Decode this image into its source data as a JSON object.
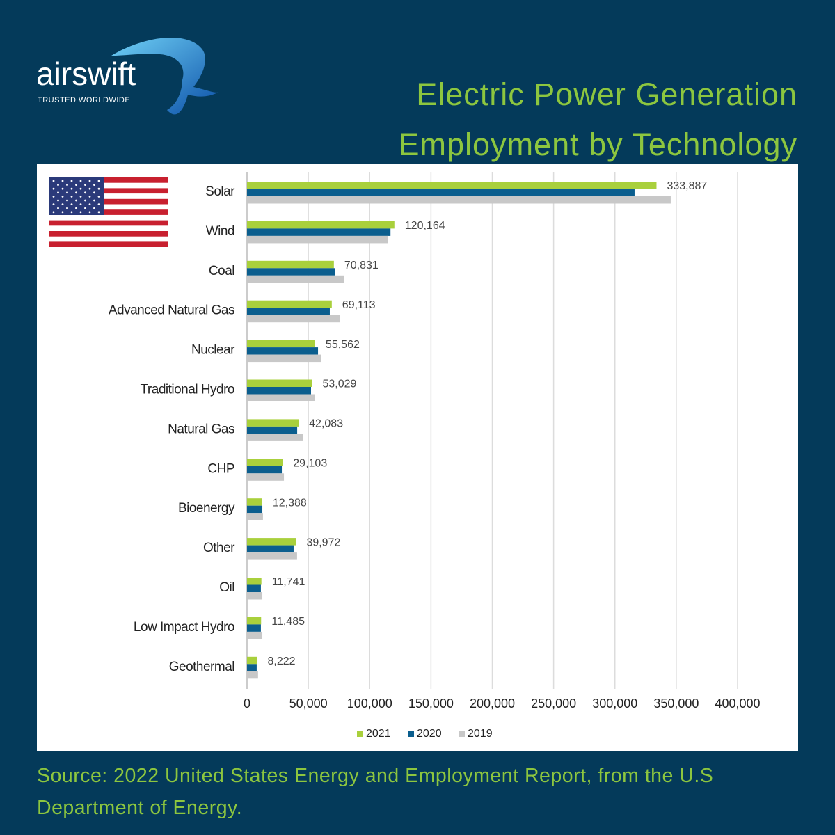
{
  "header": {
    "logo": "airswift",
    "tagline": "TRUSTED WORLDWIDE"
  },
  "chart_data": {
    "type": "hbar",
    "title": "Electric Power Generation Employment by Technology",
    "categories": [
      "Solar",
      "Wind",
      "Coal",
      "Advanced Natural Gas",
      "Nuclear",
      "Traditional  Hydro",
      "Natural Gas",
      "CHP",
      "Bioenergy",
      "Other",
      "Oil",
      "Low Impact Hydro",
      "Geothermal"
    ],
    "series": [
      {
        "name": "2021",
        "color": "#a9d03c",
        "values": [
          333887,
          120164,
          70831,
          69113,
          55562,
          53029,
          42083,
          29103,
          12388,
          39972,
          11741,
          11485,
          8222
        ],
        "value_labels": [
          "333,887",
          "120,164",
          "70,831",
          "69,113",
          "55,562",
          "53,029",
          "42,083",
          "29,103",
          "12,388",
          "39,972",
          "11,741",
          "11,485",
          "8,222"
        ]
      },
      {
        "name": "2020",
        "color": "#0b5e8e",
        "values": [
          316000,
          117000,
          71500,
          67500,
          57900,
          52200,
          40900,
          28400,
          12500,
          38000,
          11300,
          11300,
          7900
        ]
      },
      {
        "name": "2019",
        "color": "#c8c8c8",
        "values": [
          345500,
          115000,
          79400,
          75500,
          60700,
          55600,
          45400,
          30100,
          13000,
          40800,
          12500,
          12500,
          9000
        ]
      }
    ],
    "xlim": [
      0,
      400000
    ],
    "xticks": [
      0,
      {
        "value": 50000,
        "label": "50,000"
      },
      {
        "value": 100000,
        "label": "100,000"
      },
      {
        "value": 150000,
        "label": "150,000"
      },
      {
        "value": 200000,
        "label": "200,000"
      },
      {
        "value": 250000,
        "label": "250,000"
      },
      {
        "value": 300000,
        "label": "300,000"
      },
      {
        "value": 350000,
        "label": "350,000"
      },
      {
        "value": 400000,
        "label": "400,000"
      }
    ],
    "grid": true,
    "legend": "bottom"
  },
  "source": "Source: 2022 United States Energy and Employment Report, from the U.S Department of Energy."
}
